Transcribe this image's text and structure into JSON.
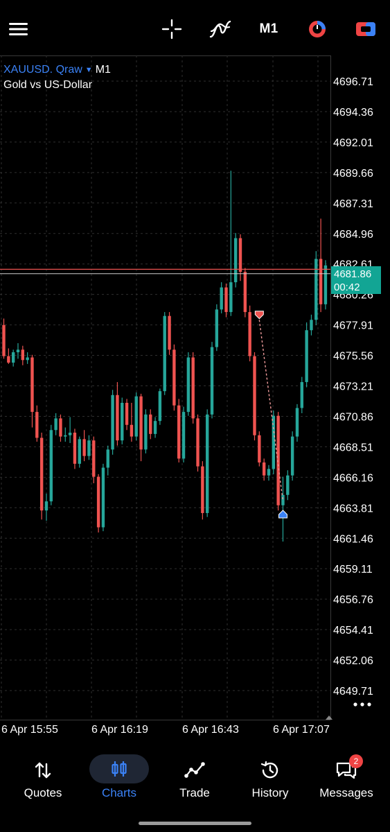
{
  "toolbar": {
    "timeframe": "M1",
    "icons": [
      "menu-icon",
      "crosshair-icon",
      "indicator-icon",
      "one-click-trading-icon",
      "trade-panel-icon"
    ]
  },
  "symbol": {
    "name": "XAUUSD. Qraw",
    "timeframe": "M1",
    "description": "Gold vs US-Dollar"
  },
  "price_tag": {
    "price": "4681.86",
    "countdown": "00:42"
  },
  "colors": {
    "bull": "#26a69a",
    "bear": "#ef5350",
    "accent": "#3b82f6",
    "price_tag": "#12a594",
    "grid": "#2f2f2f"
  },
  "chart_data": {
    "type": "candlestick",
    "y_axis_ticks": [
      "4696.71",
      "4694.36",
      "4692.01",
      "4689.66",
      "4687.31",
      "4684.96",
      "4682.61",
      "4680.26",
      "4677.91",
      "4675.56",
      "4673.21",
      "4670.86",
      "4668.51",
      "4666.16",
      "4663.81",
      "4661.46",
      "4659.11",
      "4656.76",
      "4654.41",
      "4652.06",
      "4649.71"
    ],
    "x_axis_ticks": [
      "6 Apr 15:55",
      "6 Apr 16:19",
      "6 Apr 16:43",
      "6 Apr 17:07"
    ],
    "ylim": [
      4648.5,
      4698.5
    ],
    "bid_line": 4681.86,
    "ask_line": 4682.2,
    "candles": [
      {
        "o": 4677.9,
        "h": 4678.4,
        "l": 4675.3,
        "c": 4675.5
      },
      {
        "o": 4675.5,
        "h": 4676.1,
        "l": 4674.9,
        "c": 4675.0
      },
      {
        "o": 4675.0,
        "h": 4676.0,
        "l": 4674.7,
        "c": 4675.8
      },
      {
        "o": 4675.8,
        "h": 4676.5,
        "l": 4675.3,
        "c": 4676.0
      },
      {
        "o": 4676.0,
        "h": 4676.3,
        "l": 4674.8,
        "c": 4675.2
      },
      {
        "o": 4675.2,
        "h": 4675.8,
        "l": 4674.9,
        "c": 4675.4
      },
      {
        "o": 4675.4,
        "h": 4675.6,
        "l": 4670.0,
        "c": 4671.2
      },
      {
        "o": 4671.2,
        "h": 4671.7,
        "l": 4668.9,
        "c": 4669.2
      },
      {
        "o": 4669.2,
        "h": 4669.6,
        "l": 4662.9,
        "c": 4663.6
      },
      {
        "o": 4663.6,
        "h": 4664.9,
        "l": 4662.8,
        "c": 4664.3
      },
      {
        "o": 4664.3,
        "h": 4670.2,
        "l": 4664.0,
        "c": 4669.8
      },
      {
        "o": 4669.8,
        "h": 4671.1,
        "l": 4669.4,
        "c": 4670.7
      },
      {
        "o": 4670.7,
        "h": 4671.0,
        "l": 4668.9,
        "c": 4669.3
      },
      {
        "o": 4669.3,
        "h": 4670.0,
        "l": 4668.9,
        "c": 4669.4
      },
      {
        "o": 4669.4,
        "h": 4670.8,
        "l": 4668.8,
        "c": 4669.6
      },
      {
        "o": 4669.6,
        "h": 4669.9,
        "l": 4666.8,
        "c": 4667.2
      },
      {
        "o": 4667.2,
        "h": 4669.3,
        "l": 4666.9,
        "c": 4669.1
      },
      {
        "o": 4669.1,
        "h": 4669.8,
        "l": 4667.4,
        "c": 4667.8
      },
      {
        "o": 4667.8,
        "h": 4669.4,
        "l": 4667.5,
        "c": 4669.0
      },
      {
        "o": 4669.0,
        "h": 4669.3,
        "l": 4665.7,
        "c": 4666.2
      },
      {
        "o": 4666.2,
        "h": 4666.4,
        "l": 4661.9,
        "c": 4662.3
      },
      {
        "o": 4662.3,
        "h": 4667.2,
        "l": 4662.0,
        "c": 4666.9
      },
      {
        "o": 4666.9,
        "h": 4668.6,
        "l": 4666.3,
        "c": 4668.3
      },
      {
        "o": 4668.3,
        "h": 4672.9,
        "l": 4667.9,
        "c": 4672.5
      },
      {
        "o": 4672.5,
        "h": 4673.5,
        "l": 4668.6,
        "c": 4669.0
      },
      {
        "o": 4669.0,
        "h": 4672.3,
        "l": 4668.7,
        "c": 4671.9
      },
      {
        "o": 4671.9,
        "h": 4672.2,
        "l": 4669.8,
        "c": 4670.2
      },
      {
        "o": 4670.2,
        "h": 4671.9,
        "l": 4668.9,
        "c": 4669.3
      },
      {
        "o": 4669.3,
        "h": 4672.7,
        "l": 4669.0,
        "c": 4672.4
      },
      {
        "o": 4672.4,
        "h": 4672.6,
        "l": 4667.4,
        "c": 4668.3
      },
      {
        "o": 4668.3,
        "h": 4671.4,
        "l": 4668.0,
        "c": 4671.0
      },
      {
        "o": 4671.0,
        "h": 4671.4,
        "l": 4669.1,
        "c": 4669.5
      },
      {
        "o": 4669.5,
        "h": 4670.8,
        "l": 4669.2,
        "c": 4670.5
      },
      {
        "o": 4670.5,
        "h": 4673.0,
        "l": 4670.2,
        "c": 4672.8
      },
      {
        "o": 4672.8,
        "h": 4678.9,
        "l": 4672.5,
        "c": 4678.6
      },
      {
        "o": 4678.6,
        "h": 4678.9,
        "l": 4675.6,
        "c": 4676.0
      },
      {
        "o": 4676.0,
        "h": 4676.4,
        "l": 4671.3,
        "c": 4671.7
      },
      {
        "o": 4671.7,
        "h": 4672.2,
        "l": 4667.3,
        "c": 4667.6
      },
      {
        "o": 4667.6,
        "h": 4671.6,
        "l": 4667.3,
        "c": 4671.2
      },
      {
        "o": 4671.2,
        "h": 4675.8,
        "l": 4670.9,
        "c": 4675.4
      },
      {
        "o": 4675.4,
        "h": 4675.8,
        "l": 4670.3,
        "c": 4670.7
      },
      {
        "o": 4670.7,
        "h": 4671.0,
        "l": 4666.6,
        "c": 4667.0
      },
      {
        "o": 4667.0,
        "h": 4667.4,
        "l": 4662.9,
        "c": 4663.4
      },
      {
        "o": 4663.4,
        "h": 4671.4,
        "l": 4663.1,
        "c": 4671.0
      },
      {
        "o": 4671.0,
        "h": 4676.6,
        "l": 4670.7,
        "c": 4676.2
      },
      {
        "o": 4676.2,
        "h": 4679.5,
        "l": 4675.9,
        "c": 4679.1
      },
      {
        "o": 4679.1,
        "h": 4681.2,
        "l": 4678.8,
        "c": 4680.8
      },
      {
        "o": 4680.8,
        "h": 4681.1,
        "l": 4678.5,
        "c": 4678.9
      },
      {
        "o": 4678.9,
        "h": 4689.8,
        "l": 4678.6,
        "c": 4681.2
      },
      {
        "o": 4681.2,
        "h": 4685.0,
        "l": 4680.8,
        "c": 4684.6
      },
      {
        "o": 4684.6,
        "h": 4684.9,
        "l": 4681.3,
        "c": 4682.0
      },
      {
        "o": 4682.0,
        "h": 4682.3,
        "l": 4678.5,
        "c": 4678.9
      },
      {
        "o": 4678.9,
        "h": 4679.4,
        "l": 4675.1,
        "c": 4675.5
      },
      {
        "o": 4675.5,
        "h": 4675.8,
        "l": 4669.0,
        "c": 4669.4
      },
      {
        "o": 4669.4,
        "h": 4669.7,
        "l": 4667.0,
        "c": 4667.3
      },
      {
        "o": 4667.3,
        "h": 4667.6,
        "l": 4665.9,
        "c": 4666.3
      },
      {
        "o": 4666.3,
        "h": 4667.1,
        "l": 4665.9,
        "c": 4666.8
      },
      {
        "o": 4666.8,
        "h": 4671.3,
        "l": 4666.4,
        "c": 4670.9
      },
      {
        "o": 4670.9,
        "h": 4671.2,
        "l": 4663.6,
        "c": 4664.0
      },
      {
        "o": 4664.0,
        "h": 4666.2,
        "l": 4661.2,
        "c": 4664.8
      },
      {
        "o": 4664.8,
        "h": 4666.7,
        "l": 4664.4,
        "c": 4666.3
      },
      {
        "o": 4666.3,
        "h": 4669.7,
        "l": 4665.9,
        "c": 4669.3
      },
      {
        "o": 4669.3,
        "h": 4671.8,
        "l": 4668.9,
        "c": 4671.5
      },
      {
        "o": 4671.5,
        "h": 4673.9,
        "l": 4671.1,
        "c": 4673.5
      },
      {
        "o": 4673.5,
        "h": 4678.1,
        "l": 4673.1,
        "c": 4677.5
      },
      {
        "o": 4677.5,
        "h": 4678.7,
        "l": 4677.1,
        "c": 4678.3
      },
      {
        "o": 4678.3,
        "h": 4683.6,
        "l": 4677.9,
        "c": 4683.0
      },
      {
        "o": 4683.0,
        "h": 4686.1,
        "l": 4678.9,
        "c": 4679.5
      },
      {
        "o": 4679.5,
        "h": 4682.9,
        "l": 4679.1,
        "c": 4682.5
      }
    ]
  },
  "nav": {
    "quotes": "Quotes",
    "charts": "Charts",
    "trade": "Trade",
    "history": "History",
    "messages": "Messages",
    "messages_badge": "2"
  }
}
